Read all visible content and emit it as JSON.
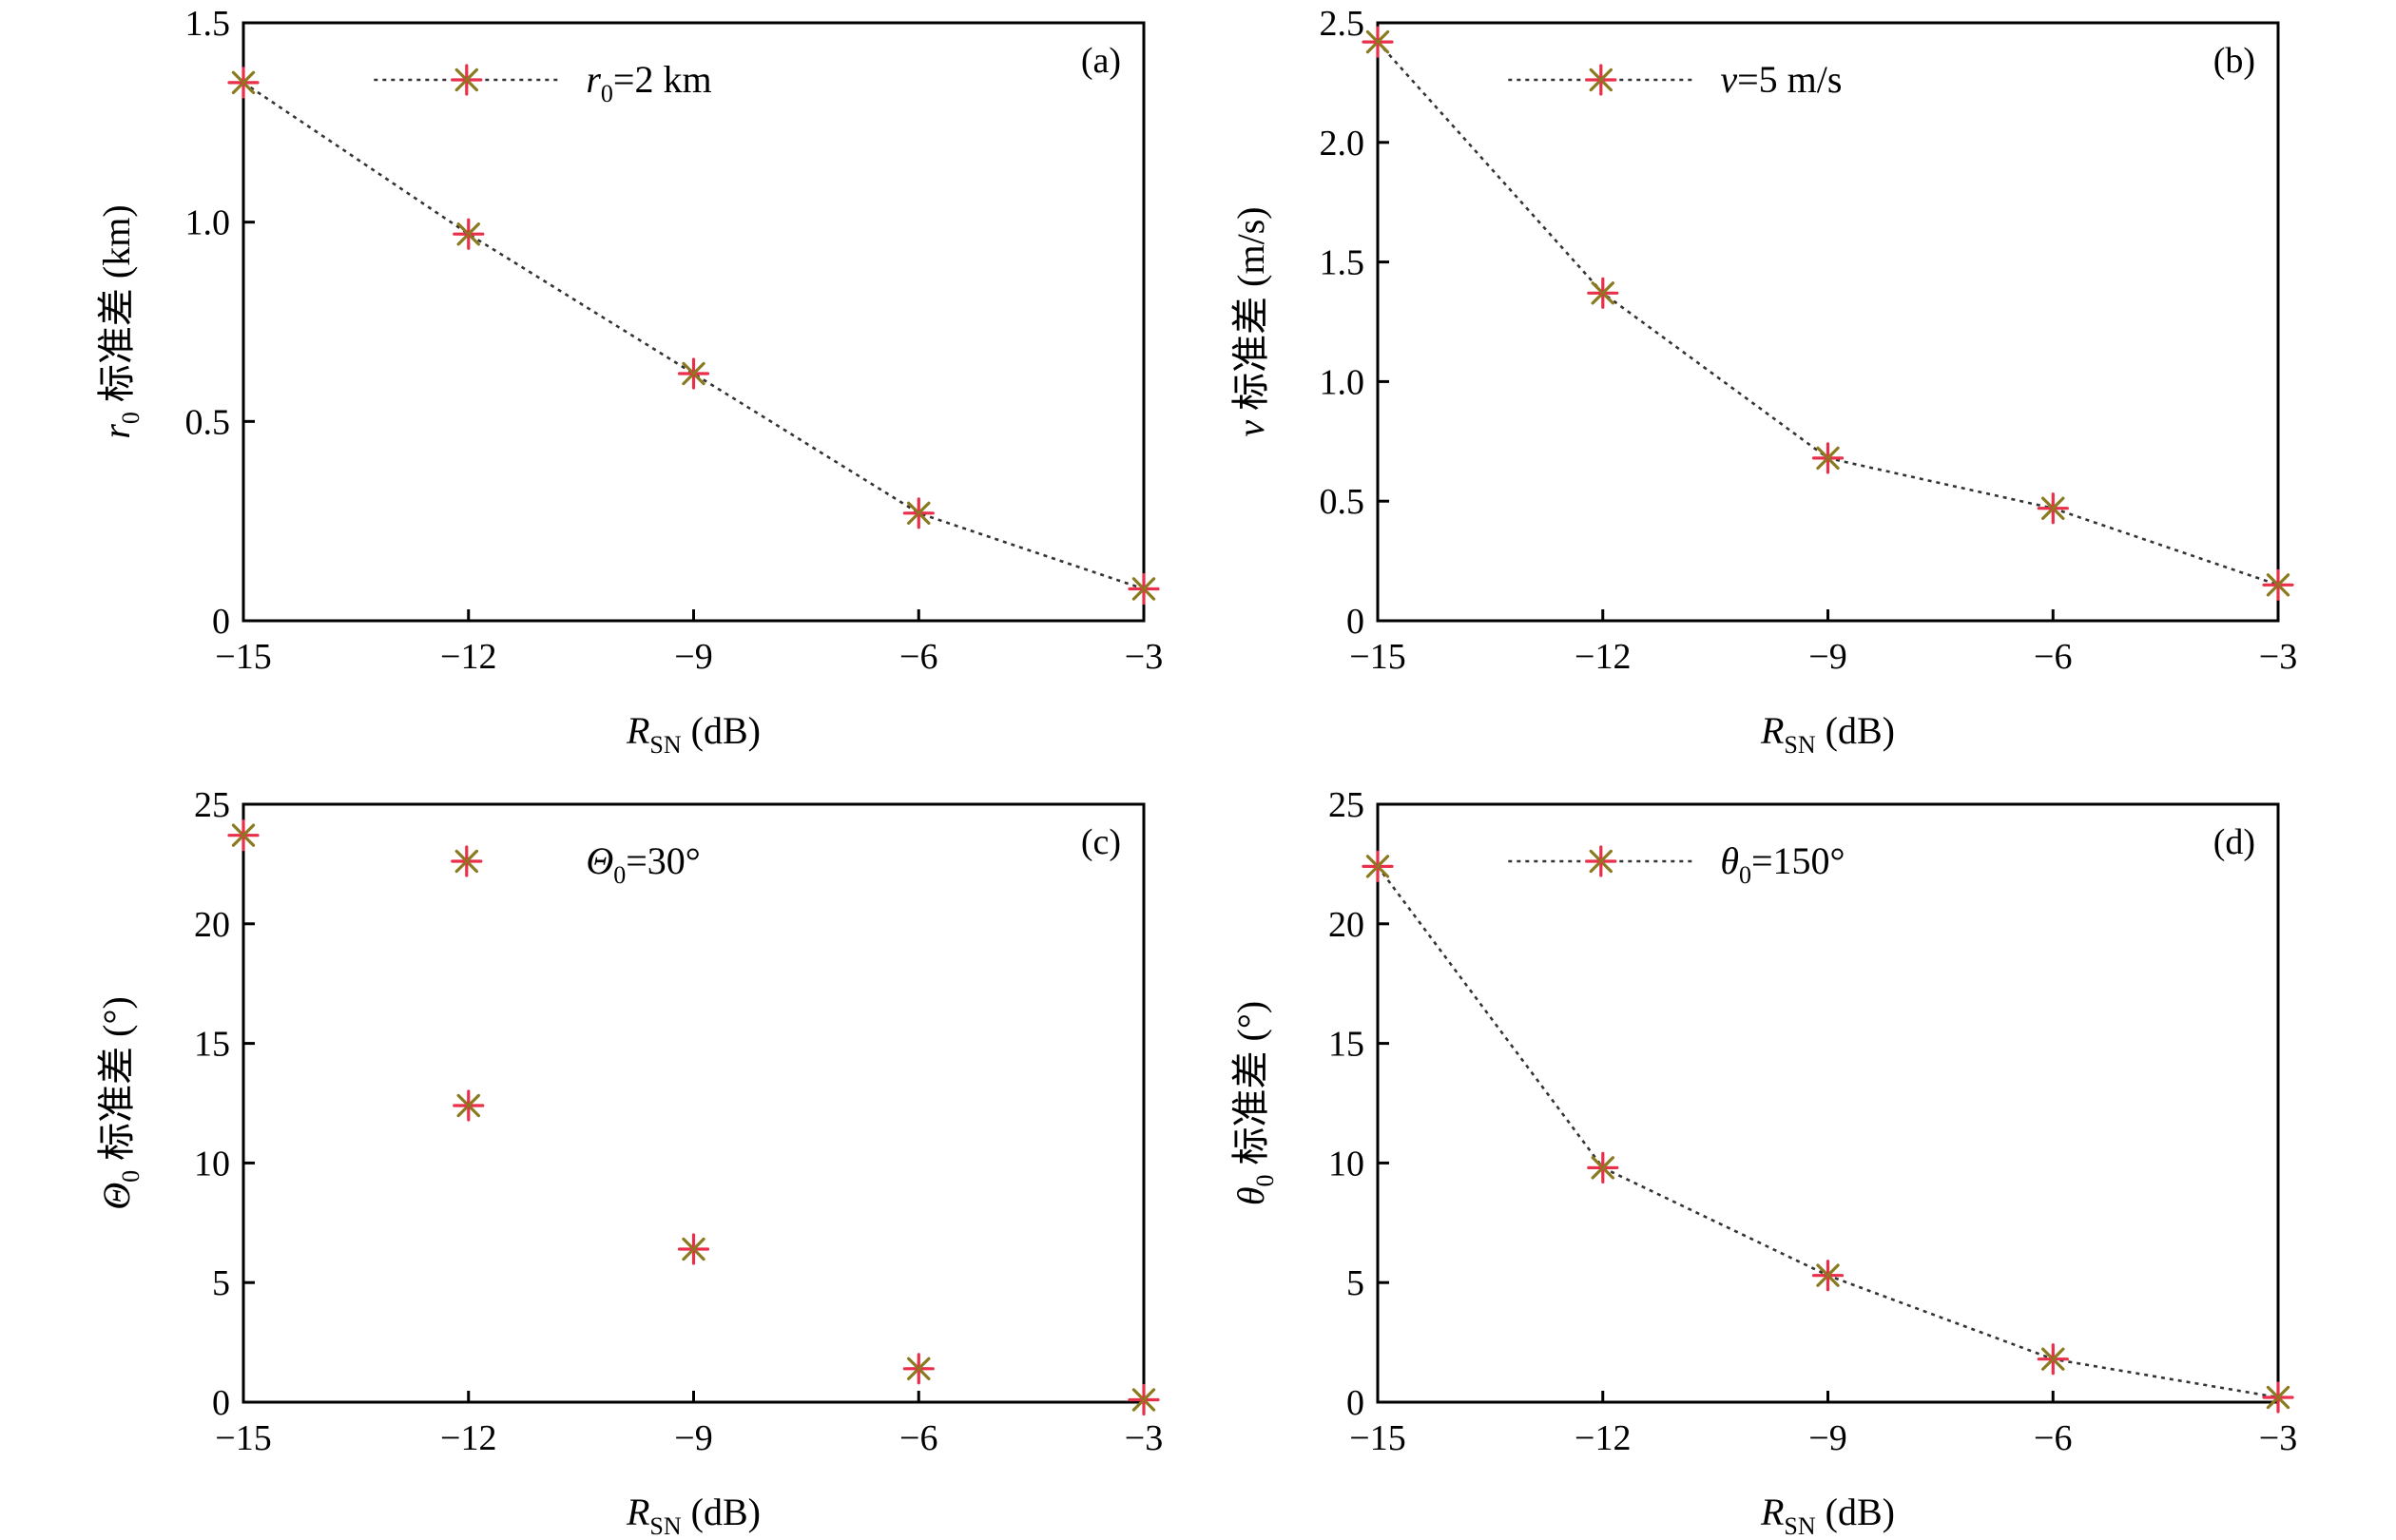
{
  "chart_data": [
    {
      "type": "line",
      "panel_label": "(a)",
      "x": [
        -15,
        -12,
        -9,
        -6,
        -3
      ],
      "xlim": [
        -15,
        -3
      ],
      "xticks": [
        "−15",
        "−12",
        "−9",
        "−6",
        "−3"
      ],
      "xlabel": {
        "main": "R",
        "sub": "SN",
        "rest": " (dB)"
      },
      "ylim": [
        0,
        1.5
      ],
      "yticks": [
        "0",
        "0.5",
        "1.0",
        "1.5"
      ],
      "ylabel": {
        "main": "r",
        "sub": "0",
        "rest": " 标准差 (km)"
      },
      "series": [
        {
          "values": [
            1.35,
            0.97,
            0.62,
            0.27,
            0.08
          ],
          "legend": {
            "main": "r",
            "sub": "0",
            "rest": "=2 km"
          },
          "show_line": true,
          "marker": "asterisk",
          "marker_colors": [
            "#e8304a",
            "#8a7a20"
          ]
        }
      ],
      "legend_position": "top-center",
      "grid": false
    },
    {
      "type": "line",
      "panel_label": "(b)",
      "x": [
        -15,
        -12,
        -9,
        -6,
        -3
      ],
      "xlim": [
        -15,
        -3
      ],
      "xticks": [
        "−15",
        "−12",
        "−9",
        "−6",
        "−3"
      ],
      "xlabel": {
        "main": "R",
        "sub": "SN",
        "rest": " (dB)"
      },
      "ylim": [
        0,
        2.5
      ],
      "yticks": [
        "0",
        "0.5",
        "1.0",
        "1.5",
        "2.0",
        "2.5"
      ],
      "ylabel": {
        "main": "v",
        "sub": "",
        "rest": " 标准差 (m/s)"
      },
      "series": [
        {
          "values": [
            2.42,
            1.37,
            0.68,
            0.47,
            0.15
          ],
          "legend": {
            "main": "v",
            "sub": "",
            "rest": "=5 m/s"
          },
          "show_line": true,
          "marker": "asterisk",
          "marker_colors": [
            "#e8304a",
            "#8a7a20"
          ]
        }
      ],
      "legend_position": "top-center",
      "grid": false
    },
    {
      "type": "line",
      "panel_label": "(c)",
      "x": [
        -15,
        -12,
        -9,
        -6,
        -3
      ],
      "xlim": [
        -15,
        -3
      ],
      "xticks": [
        "−15",
        "−12",
        "−9",
        "−6",
        "−3"
      ],
      "xlabel": {
        "main": "R",
        "sub": "SN",
        "rest": " (dB)"
      },
      "ylim": [
        0,
        25
      ],
      "yticks": [
        "0",
        "5",
        "10",
        "15",
        "20",
        "25"
      ],
      "ylabel": {
        "main": "Θ",
        "sub": "0",
        "rest": " 标准差 (°)"
      },
      "series": [
        {
          "values": [
            23.7,
            12.4,
            6.4,
            1.4,
            0.1
          ],
          "legend": {
            "main": "Θ",
            "sub": "0",
            "rest": "=30°"
          },
          "show_line": false,
          "marker": "asterisk",
          "marker_colors": [
            "#e8304a",
            "#8a7a20"
          ]
        }
      ],
      "legend_position": "top-center",
      "grid": false
    },
    {
      "type": "line",
      "panel_label": "(d)",
      "x": [
        -15,
        -12,
        -9,
        -6,
        -3
      ],
      "xlim": [
        -15,
        -3
      ],
      "xticks": [
        "−15",
        "−12",
        "−9",
        "−6",
        "−3"
      ],
      "xlabel": {
        "main": "R",
        "sub": "SN",
        "rest": " (dB)"
      },
      "ylim": [
        0,
        25
      ],
      "yticks": [
        "0",
        "5",
        "10",
        "15",
        "20",
        "25"
      ],
      "ylabel": {
        "main": "θ",
        "sub": "0",
        "rest": " 标准差 (°)"
      },
      "series": [
        {
          "values": [
            22.4,
            9.8,
            5.3,
            1.8,
            0.2
          ],
          "legend": {
            "main": "θ",
            "sub": "0",
            "rest": "=150°"
          },
          "show_line": true,
          "marker": "asterisk",
          "marker_colors": [
            "#e8304a",
            "#8a7a20"
          ]
        }
      ],
      "legend_position": "top-center",
      "grid": false
    }
  ]
}
